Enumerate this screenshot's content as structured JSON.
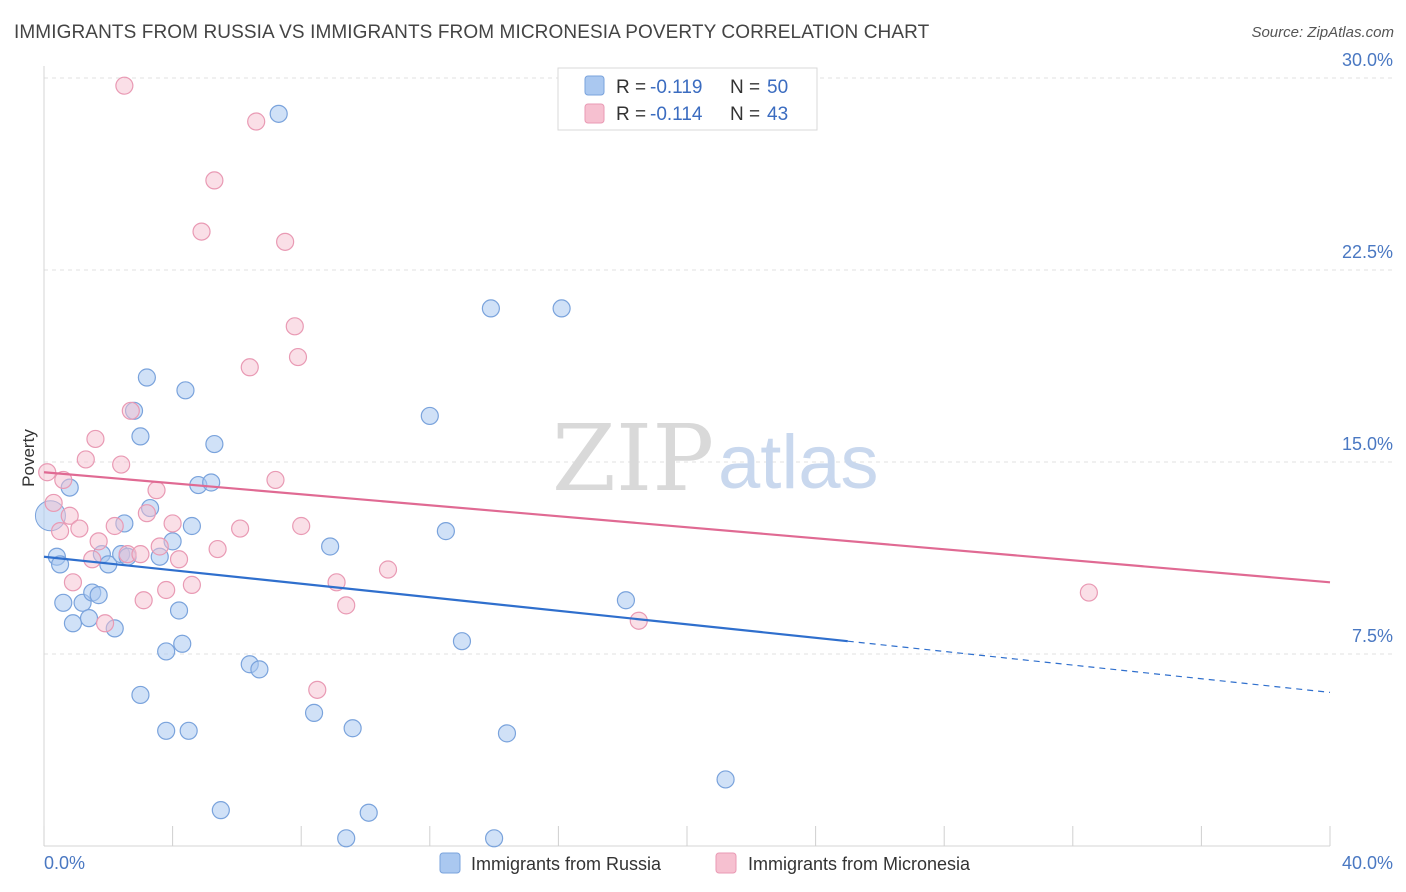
{
  "header": {
    "title": "IMMIGRANTS FROM RUSSIA VS IMMIGRANTS FROM MICRONESIA POVERTY CORRELATION CHART",
    "source": "Source: ZipAtlas.com"
  },
  "watermark": {
    "zip": "ZIP",
    "atlas": "atlas"
  },
  "legend_top": {
    "rows": [
      {
        "r_label": "R =",
        "r_value": "-0.119",
        "n_label": "N =",
        "n_value": "50"
      },
      {
        "r_label": "R =",
        "r_value": "-0.114",
        "n_label": "N =",
        "n_value": "43"
      }
    ]
  },
  "colors": {
    "russia_fill": "#aac8f0",
    "russia_stroke": "#7aa3dc",
    "russia_line": "#2f6fcd",
    "micronesia_fill": "#f6c0d0",
    "micronesia_stroke": "#e99ab4",
    "micronesia_line": "#e06a93",
    "tick_label": "#4a78c2",
    "grid": "#e2e2e2"
  },
  "chart_data": {
    "type": "scatter",
    "title": "IMMIGRANTS FROM RUSSIA VS IMMIGRANTS FROM MICRONESIA POVERTY CORRELATION CHART",
    "xlabel": "",
    "ylabel": "Poverty",
    "xlim": [
      0,
      40
    ],
    "ylim": [
      0,
      30
    ],
    "x_tick_labels": [
      "0.0%",
      "40.0%"
    ],
    "y_ticks": [
      7.5,
      15.0,
      22.5,
      30.0
    ],
    "y_tick_labels": [
      "7.5%",
      "15.0%",
      "22.5%",
      "30.0%"
    ],
    "grid": true,
    "legend_placement": "bottom-center",
    "series": [
      {
        "name": "Immigrants from Russia",
        "r": -0.119,
        "n": 50,
        "trend": {
          "x_start": 0,
          "y_start": 11.3,
          "x_solid_end": 25.0,
          "y_solid_end": 8.0,
          "x_end": 40,
          "y_end": 6.0
        },
        "points": [
          [
            0.4,
            11.3
          ],
          [
            0.5,
            11.0
          ],
          [
            0.8,
            14.0
          ],
          [
            0.6,
            9.5
          ],
          [
            0.9,
            8.7
          ],
          [
            1.2,
            9.5
          ],
          [
            1.4,
            8.9
          ],
          [
            1.5,
            9.9
          ],
          [
            1.7,
            9.8
          ],
          [
            1.8,
            11.4
          ],
          [
            2.0,
            11.0
          ],
          [
            2.2,
            8.5
          ],
          [
            2.4,
            11.4
          ],
          [
            2.5,
            12.6
          ],
          [
            2.8,
            17.0
          ],
          [
            3.0,
            16.0
          ],
          [
            3.2,
            18.3
          ],
          [
            3.3,
            13.2
          ],
          [
            3.0,
            5.9
          ],
          [
            3.8,
            7.6
          ],
          [
            4.0,
            11.9
          ],
          [
            4.2,
            9.2
          ],
          [
            4.4,
            17.8
          ],
          [
            4.6,
            12.5
          ],
          [
            4.8,
            14.1
          ],
          [
            5.2,
            14.2
          ],
          [
            5.3,
            15.7
          ],
          [
            3.8,
            4.5
          ],
          [
            4.5,
            4.5
          ],
          [
            4.3,
            7.9
          ],
          [
            6.4,
            7.1
          ],
          [
            6.7,
            6.9
          ],
          [
            7.3,
            28.6
          ],
          [
            8.9,
            11.7
          ],
          [
            8.4,
            5.2
          ],
          [
            9.6,
            4.6
          ],
          [
            10.1,
            1.3
          ],
          [
            9.4,
            0.3
          ],
          [
            12.0,
            16.8
          ],
          [
            12.5,
            12.3
          ],
          [
            13.0,
            8.0
          ],
          [
            13.9,
            21.0
          ],
          [
            14.4,
            4.4
          ],
          [
            16.1,
            21.0
          ],
          [
            18.1,
            9.6
          ],
          [
            21.2,
            2.6
          ],
          [
            14.0,
            0.3
          ],
          [
            5.5,
            1.4
          ],
          [
            3.6,
            11.3
          ],
          [
            2.6,
            11.3
          ]
        ]
      },
      {
        "name": "Immigrants from Micronesia",
        "r": -0.114,
        "n": 43,
        "trend": {
          "x_start": 0,
          "y_start": 14.6,
          "x_end": 40,
          "y_end": 10.3
        },
        "points": [
          [
            0.1,
            14.6
          ],
          [
            0.3,
            13.4
          ],
          [
            0.5,
            12.3
          ],
          [
            0.6,
            14.3
          ],
          [
            0.8,
            12.9
          ],
          [
            0.9,
            10.3
          ],
          [
            1.1,
            12.4
          ],
          [
            1.3,
            15.1
          ],
          [
            1.5,
            11.2
          ],
          [
            1.6,
            15.9
          ],
          [
            1.7,
            11.9
          ],
          [
            1.9,
            8.7
          ],
          [
            2.2,
            12.5
          ],
          [
            2.4,
            14.9
          ],
          [
            2.6,
            11.4
          ],
          [
            2.7,
            17.0
          ],
          [
            3.0,
            11.4
          ],
          [
            3.1,
            9.6
          ],
          [
            3.2,
            13.0
          ],
          [
            3.5,
            13.9
          ],
          [
            3.6,
            11.7
          ],
          [
            3.8,
            10.0
          ],
          [
            4.0,
            12.6
          ],
          [
            4.2,
            11.2
          ],
          [
            4.6,
            10.2
          ],
          [
            4.9,
            24.0
          ],
          [
            5.3,
            26.0
          ],
          [
            5.4,
            11.6
          ],
          [
            6.1,
            12.4
          ],
          [
            6.4,
            18.7
          ],
          [
            6.6,
            28.3
          ],
          [
            7.2,
            14.3
          ],
          [
            7.5,
            23.6
          ],
          [
            7.8,
            20.3
          ],
          [
            7.9,
            19.1
          ],
          [
            8.0,
            12.5
          ],
          [
            8.5,
            6.1
          ],
          [
            9.1,
            10.3
          ],
          [
            9.4,
            9.4
          ],
          [
            10.7,
            10.8
          ],
          [
            18.5,
            8.8
          ],
          [
            32.5,
            9.9
          ],
          [
            2.5,
            29.7
          ]
        ]
      }
    ]
  },
  "legend_bottom": {
    "items": [
      {
        "label": "Immigrants from Russia"
      },
      {
        "label": "Immigrants from Micronesia"
      }
    ]
  }
}
